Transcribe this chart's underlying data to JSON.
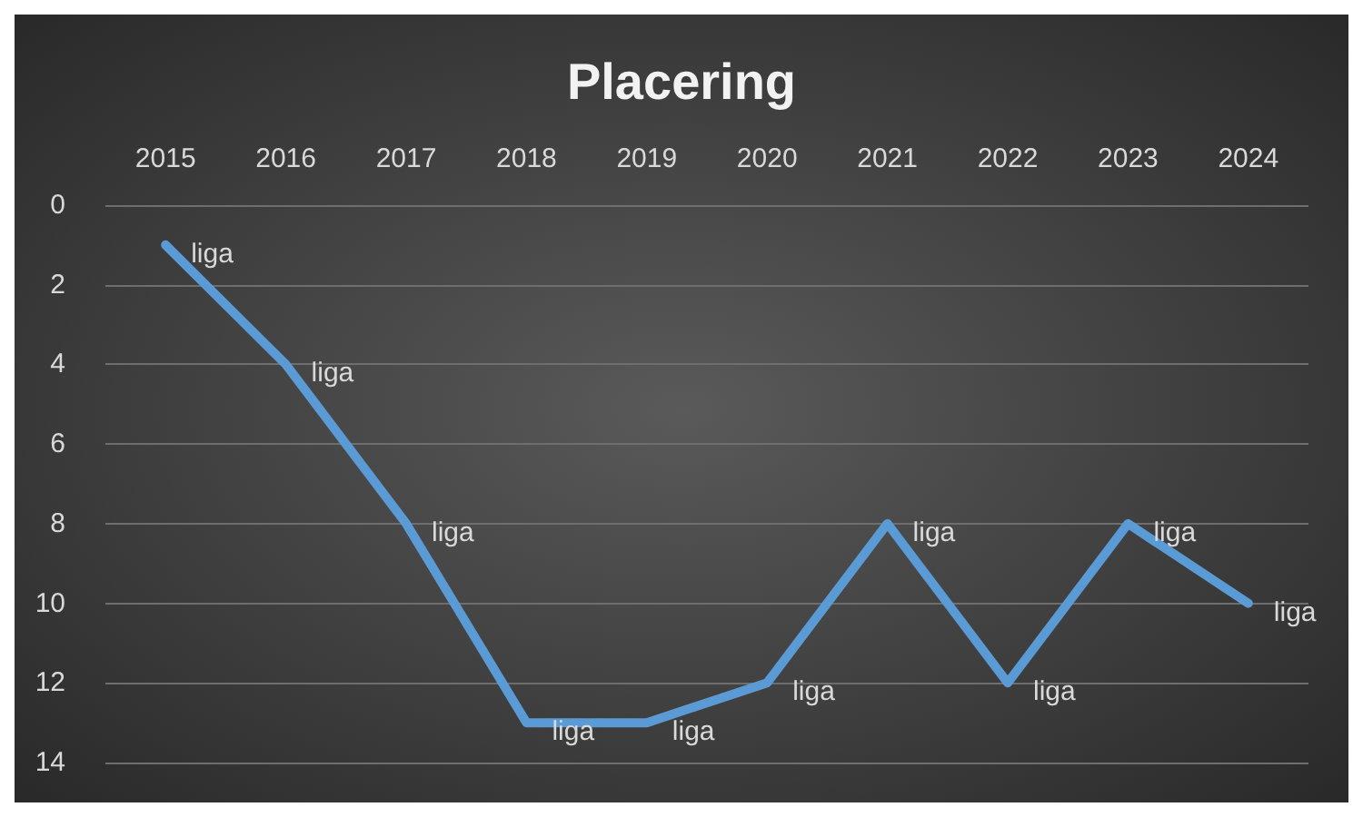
{
  "chart_data": {
    "type": "line",
    "title": "Placering",
    "categories": [
      "2015",
      "2016",
      "2017",
      "2018",
      "2019",
      "2020",
      "2021",
      "2022",
      "2023",
      "2024"
    ],
    "series": [
      {
        "color": "#5b9bd5",
        "values": [
          1,
          4,
          8,
          13,
          13,
          12,
          8,
          12,
          8,
          10
        ],
        "value_labels": [
          "liga",
          "liga",
          "liga",
          "liga",
          "liga",
          "liga",
          "liga",
          "liga",
          "liga",
          "liga"
        ]
      }
    ],
    "ylim": [
      14,
      0
    ],
    "yticks": [
      0,
      2,
      4,
      6,
      8,
      10,
      12,
      14
    ],
    "grid": "y",
    "marker": "none",
    "line_style": "solid"
  }
}
